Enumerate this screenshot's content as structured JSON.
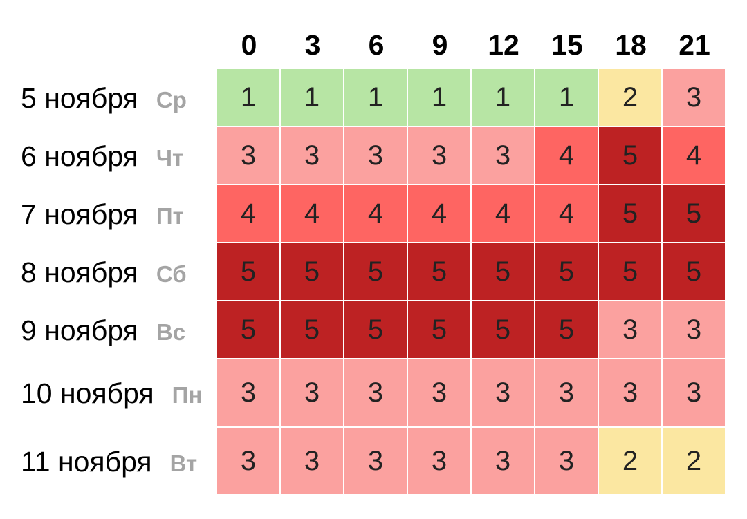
{
  "chart_data": {
    "type": "heatmap",
    "columns": [
      "0",
      "3",
      "6",
      "9",
      "12",
      "15",
      "18",
      "21"
    ],
    "rows": [
      {
        "date": "5 ноября",
        "weekday": "Ср",
        "values": [
          1,
          1,
          1,
          1,
          1,
          1,
          2,
          3
        ]
      },
      {
        "date": "6 ноября",
        "weekday": "Чт",
        "values": [
          3,
          3,
          3,
          3,
          3,
          4,
          5,
          4
        ]
      },
      {
        "date": "7 ноября",
        "weekday": "Пт",
        "values": [
          4,
          4,
          4,
          4,
          4,
          4,
          5,
          5
        ]
      },
      {
        "date": "8 ноября",
        "weekday": "Сб",
        "values": [
          5,
          5,
          5,
          5,
          5,
          5,
          5,
          5
        ]
      },
      {
        "date": "9 ноября",
        "weekday": "Вс",
        "values": [
          5,
          5,
          5,
          5,
          5,
          5,
          3,
          3
        ]
      },
      {
        "date": "10 ноября",
        "weekday": "Пн",
        "values": [
          3,
          3,
          3,
          3,
          3,
          3,
          3,
          3
        ]
      },
      {
        "date": "11 ноября",
        "weekday": "Вт",
        "values": [
          3,
          3,
          3,
          3,
          3,
          3,
          2,
          2
        ]
      }
    ],
    "color_scale": {
      "1": "#b7e5a4",
      "2": "#fbe7a1",
      "3": "#fba19f",
      "4": "#fe6562",
      "5": "#bd2223"
    },
    "weekday_color": "#a4a4a4"
  }
}
